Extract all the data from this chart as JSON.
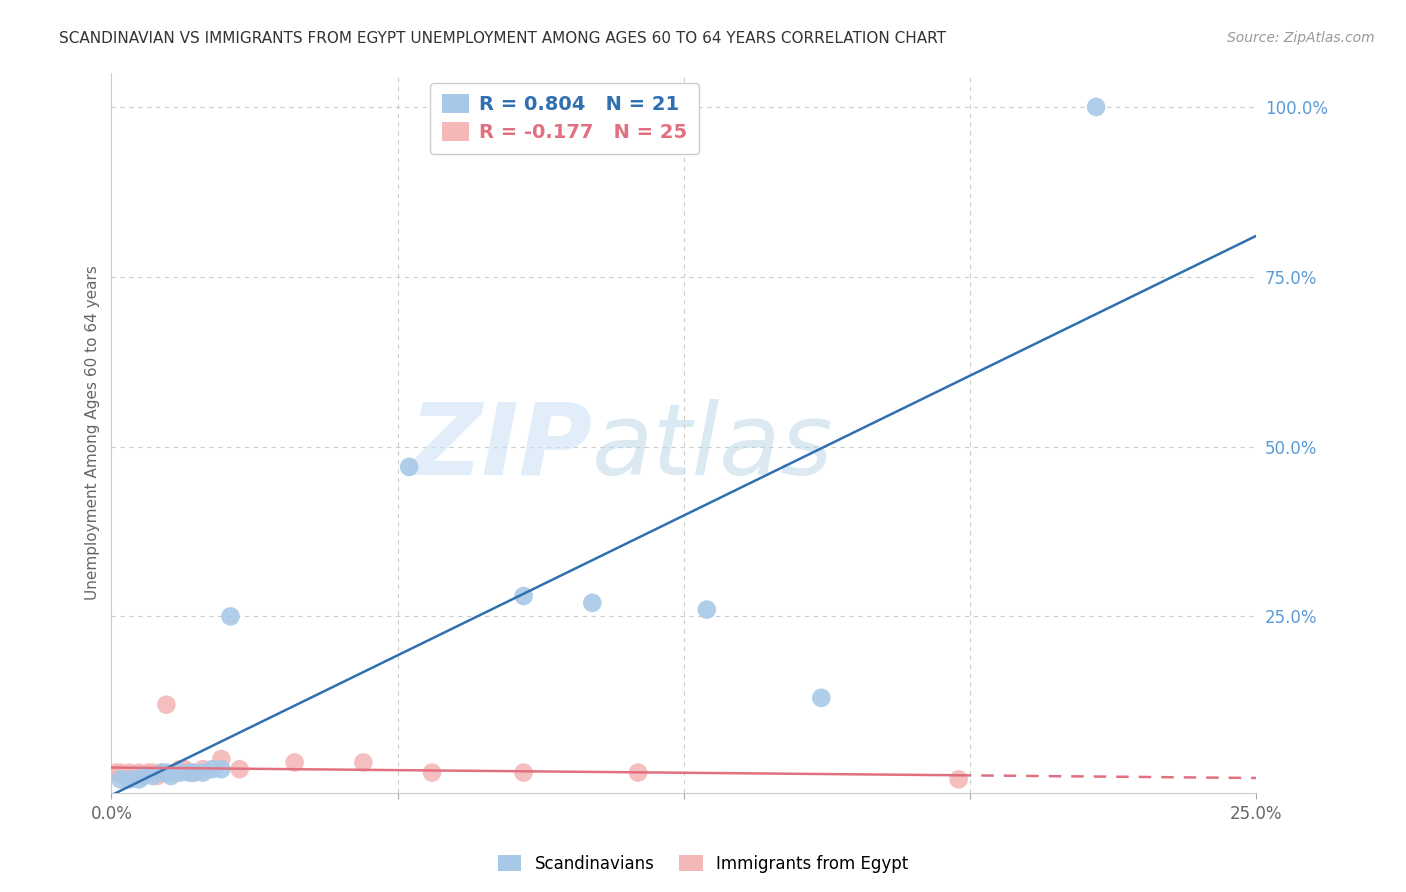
{
  "title": "SCANDINAVIAN VS IMMIGRANTS FROM EGYPT UNEMPLOYMENT AMONG AGES 60 TO 64 YEARS CORRELATION CHART",
  "source": "Source: ZipAtlas.com",
  "ylabel": "Unemployment Among Ages 60 to 64 years",
  "right_yticks": [
    "100.0%",
    "75.0%",
    "50.0%",
    "25.0%"
  ],
  "right_ytick_vals": [
    1.0,
    0.75,
    0.5,
    0.25
  ],
  "watermark_zip": "ZIP",
  "watermark_atlas": "atlas",
  "scand_R": 0.804,
  "scand_N": 21,
  "egypt_R": -0.177,
  "egypt_N": 25,
  "scand_color": "#a8c8e8",
  "egypt_color": "#f4b8b8",
  "scand_line_color": "#3070b0",
  "egypt_line_color": "#e07080",
  "legend_label_scand": "Scandinavians",
  "legend_label_egypt": "Immigrants from Egypt",
  "scand_points_x": [
    0.002,
    0.004,
    0.006,
    0.007,
    0.009,
    0.011,
    0.012,
    0.013,
    0.015,
    0.017,
    0.018,
    0.02,
    0.022,
    0.024,
    0.026,
    0.065,
    0.09,
    0.105,
    0.13,
    0.155,
    0.215
  ],
  "scand_points_y": [
    0.01,
    0.01,
    0.01,
    0.015,
    0.015,
    0.02,
    0.02,
    0.015,
    0.02,
    0.02,
    0.02,
    0.02,
    0.025,
    0.025,
    0.25,
    0.47,
    0.28,
    0.27,
    0.26,
    0.13,
    1.0
  ],
  "egypt_points_x": [
    0.001,
    0.002,
    0.003,
    0.004,
    0.005,
    0.006,
    0.007,
    0.008,
    0.009,
    0.01,
    0.011,
    0.012,
    0.014,
    0.015,
    0.016,
    0.018,
    0.02,
    0.024,
    0.028,
    0.04,
    0.055,
    0.07,
    0.09,
    0.115,
    0.185
  ],
  "egypt_points_y": [
    0.02,
    0.02,
    0.015,
    0.02,
    0.015,
    0.02,
    0.015,
    0.02,
    0.02,
    0.015,
    0.02,
    0.12,
    0.02,
    0.025,
    0.025,
    0.02,
    0.025,
    0.04,
    0.025,
    0.035,
    0.035,
    0.02,
    0.02,
    0.02,
    0.01
  ],
  "xlim": [
    0.0,
    0.25
  ],
  "ylim": [
    -0.01,
    1.05
  ],
  "background_color": "#ffffff",
  "grid_color": "#cccccc",
  "title_fontsize": 11,
  "source_fontsize": 10,
  "ylabel_fontsize": 11,
  "ytick_fontsize": 12,
  "xtick_fontsize": 12,
  "legend_fontsize": 14,
  "marker_size": 180
}
